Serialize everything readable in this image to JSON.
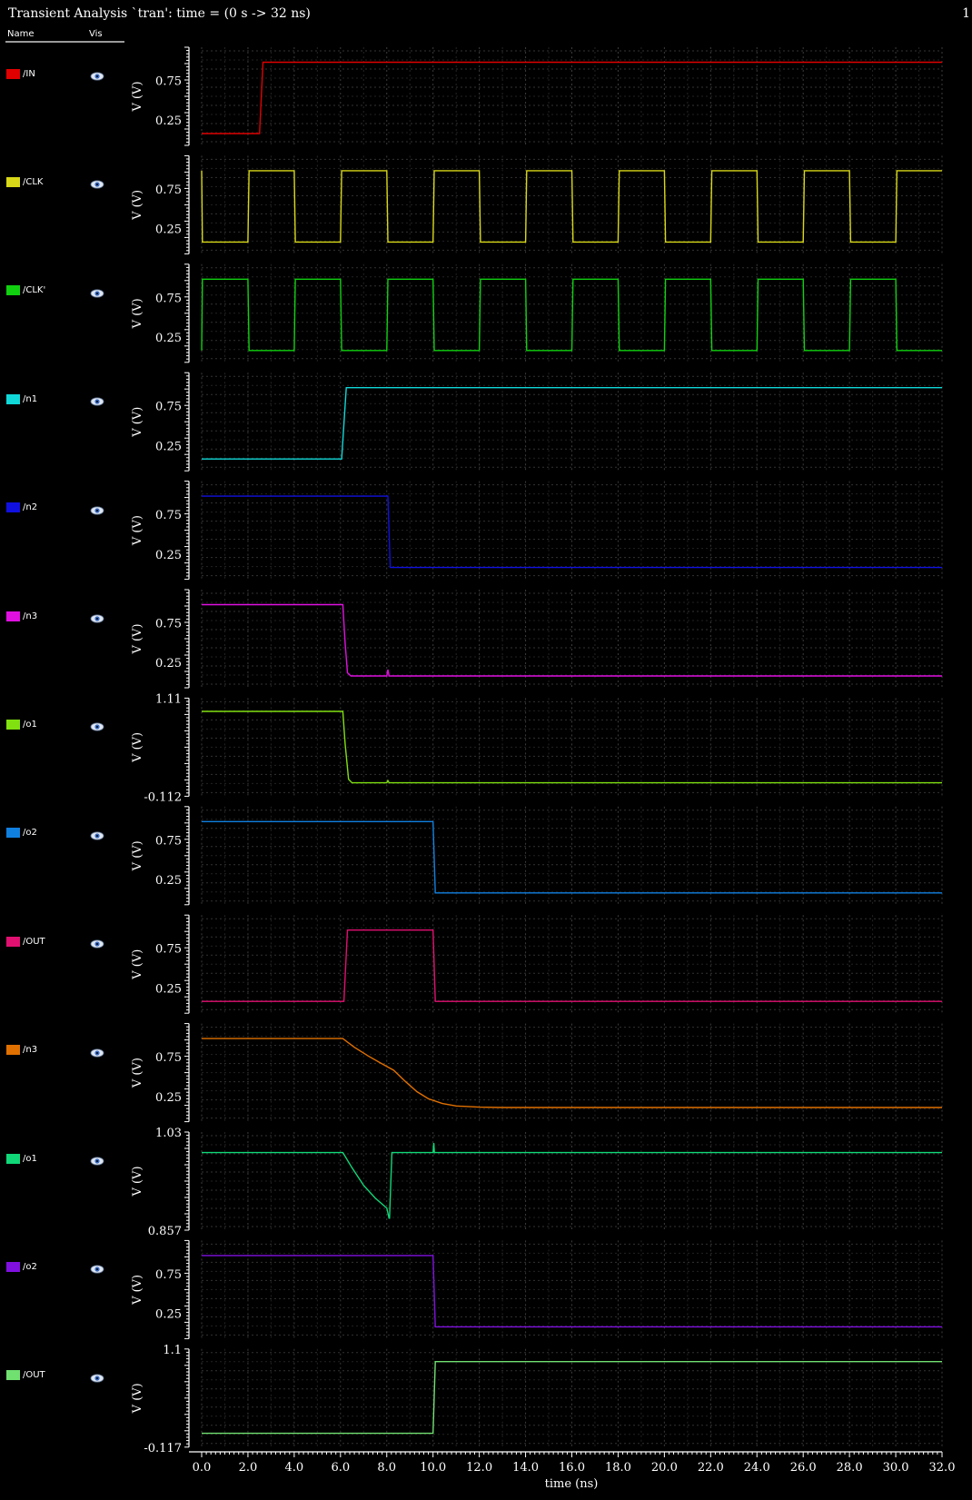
{
  "window": {
    "title": "Transient Analysis `tran': time = (0 s -> 32 ns)",
    "page_number": "1"
  },
  "legend_header": {
    "name": "Name",
    "vis": "Vis"
  },
  "chart_data": {
    "type": "line",
    "title": "Transient Analysis `tran': time = (0 s -> 32 ns)",
    "xlabel": "time (ns)",
    "xlim": [
      0,
      32
    ],
    "x_ticks": [
      "0.0",
      "2.0",
      "4.0",
      "6.0",
      "8.0",
      "10.0",
      "12.0",
      "14.0",
      "16.0",
      "18.0",
      "20.0",
      "22.0",
      "24.0",
      "26.0",
      "28.0",
      "30.0",
      "32.0"
    ],
    "grid": true,
    "series": [
      {
        "name": "/IN",
        "color": "#e00000",
        "ylabel": "V (V)",
        "ylim": [
          0,
          1.1
        ],
        "yticks": [
          "0.75",
          "0.25"
        ],
        "points": [
          [
            0,
            0.08
          ],
          [
            2.5,
            0.08
          ],
          [
            2.65,
            0.98
          ],
          [
            32,
            0.98
          ]
        ]
      },
      {
        "name": "/CLK",
        "color": "#d8d818",
        "ylabel": "V (V)",
        "ylim": [
          0,
          1.1
        ],
        "yticks": [
          "0.75",
          "0.25"
        ],
        "points": [
          [
            0,
            0.98
          ],
          [
            0.03,
            0.08
          ],
          [
            2,
            0.08
          ],
          [
            2.05,
            0.98
          ],
          [
            4,
            0.98
          ],
          [
            4.05,
            0.08
          ],
          [
            6,
            0.08
          ],
          [
            6.05,
            0.98
          ],
          [
            8,
            0.98
          ],
          [
            8.05,
            0.08
          ],
          [
            10,
            0.08
          ],
          [
            10.05,
            0.98
          ],
          [
            12,
            0.98
          ],
          [
            12.05,
            0.08
          ],
          [
            14,
            0.08
          ],
          [
            14.05,
            0.98
          ],
          [
            16,
            0.98
          ],
          [
            16.05,
            0.08
          ],
          [
            18,
            0.08
          ],
          [
            18.05,
            0.98
          ],
          [
            20,
            0.98
          ],
          [
            20.05,
            0.08
          ],
          [
            22,
            0.08
          ],
          [
            22.05,
            0.98
          ],
          [
            24,
            0.98
          ],
          [
            24.05,
            0.08
          ],
          [
            26,
            0.08
          ],
          [
            26.05,
            0.98
          ],
          [
            28,
            0.98
          ],
          [
            28.05,
            0.08
          ],
          [
            30,
            0.08
          ],
          [
            30.05,
            0.98
          ],
          [
            32,
            0.98
          ]
        ]
      },
      {
        "name": "/CLK'",
        "color": "#10d010",
        "ylabel": "V (V)",
        "ylim": [
          0,
          1.1
        ],
        "yticks": [
          "0.75",
          "0.25"
        ],
        "points": [
          [
            0,
            0.08
          ],
          [
            0.03,
            0.98
          ],
          [
            2,
            0.98
          ],
          [
            2.05,
            0.08
          ],
          [
            4,
            0.08
          ],
          [
            4.05,
            0.98
          ],
          [
            6,
            0.98
          ],
          [
            6.05,
            0.08
          ],
          [
            8,
            0.08
          ],
          [
            8.05,
            0.98
          ],
          [
            10,
            0.98
          ],
          [
            10.05,
            0.08
          ],
          [
            12,
            0.08
          ],
          [
            12.05,
            0.98
          ],
          [
            14,
            0.98
          ],
          [
            14.05,
            0.08
          ],
          [
            16,
            0.08
          ],
          [
            16.05,
            0.98
          ],
          [
            18,
            0.98
          ],
          [
            18.05,
            0.08
          ],
          [
            20,
            0.08
          ],
          [
            20.05,
            0.98
          ],
          [
            22,
            0.98
          ],
          [
            22.05,
            0.08
          ],
          [
            24,
            0.08
          ],
          [
            24.05,
            0.98
          ],
          [
            26,
            0.98
          ],
          [
            26.05,
            0.08
          ],
          [
            28,
            0.08
          ],
          [
            28.05,
            0.98
          ],
          [
            30,
            0.98
          ],
          [
            30.05,
            0.08
          ],
          [
            32,
            0.08
          ]
        ]
      },
      {
        "name": "/n1",
        "color": "#10d8d8",
        "ylabel": "V (V)",
        "ylim": [
          0,
          1.1
        ],
        "yticks": [
          "0.75",
          "0.25"
        ],
        "points": [
          [
            0,
            0.08
          ],
          [
            6.05,
            0.08
          ],
          [
            6.25,
            0.98
          ],
          [
            32,
            0.98
          ]
        ]
      },
      {
        "name": "/n2",
        "color": "#1010e0",
        "ylabel": "V (V)",
        "ylim": [
          0,
          1.1
        ],
        "yticks": [
          "0.75",
          "0.25"
        ],
        "points": [
          [
            0,
            0.98
          ],
          [
            8.05,
            0.98
          ],
          [
            8.15,
            0.08
          ],
          [
            32,
            0.08
          ]
        ]
      },
      {
        "name": "/n3",
        "color": "#e010e0",
        "ylabel": "V (V)",
        "ylim": [
          0,
          1.1
        ],
        "yticks": [
          "0.75",
          "0.25"
        ],
        "points": [
          [
            0,
            0.98
          ],
          [
            6.1,
            0.98
          ],
          [
            6.2,
            0.5
          ],
          [
            6.3,
            0.12
          ],
          [
            6.45,
            0.08
          ],
          [
            8.0,
            0.08
          ],
          [
            8.05,
            0.16
          ],
          [
            8.1,
            0.08
          ],
          [
            32,
            0.08
          ]
        ]
      },
      {
        "name": "/o1",
        "color": "#80e010",
        "ylabel": "V (V)",
        "ylim": [
          -0.112,
          1.11
        ],
        "yticks": [
          "1.11",
          "-0.112"
        ],
        "points": [
          [
            0,
            1.0
          ],
          [
            6.1,
            1.0
          ],
          [
            6.2,
            0.55
          ],
          [
            6.35,
            0.05
          ],
          [
            6.5,
            0.0
          ],
          [
            8.0,
            0.0
          ],
          [
            8.05,
            0.03
          ],
          [
            8.1,
            0.0
          ],
          [
            32,
            0.0
          ]
        ]
      },
      {
        "name": "/o2",
        "color": "#1080e0",
        "ylabel": "V (V)",
        "ylim": [
          0,
          1.1
        ],
        "yticks": [
          "0.75",
          "0.25"
        ],
        "points": [
          [
            0,
            0.98
          ],
          [
            10.0,
            0.98
          ],
          [
            10.1,
            0.08
          ],
          [
            32,
            0.08
          ]
        ]
      },
      {
        "name": "/OUT",
        "color": "#e01070",
        "ylabel": "V (V)",
        "ylim": [
          0,
          1.1
        ],
        "yticks": [
          "0.75",
          "0.25"
        ],
        "points": [
          [
            0,
            0.08
          ],
          [
            6.15,
            0.08
          ],
          [
            6.3,
            0.98
          ],
          [
            10.0,
            0.98
          ],
          [
            10.1,
            0.08
          ],
          [
            32,
            0.08
          ]
        ]
      },
      {
        "name": "/n3",
        "color": "#e07000",
        "ylabel": "V (V)",
        "ylim": [
          0,
          1.1
        ],
        "yticks": [
          "0.75",
          "0.25"
        ],
        "points": [
          [
            0,
            0.98
          ],
          [
            6.1,
            0.98
          ],
          [
            6.6,
            0.87
          ],
          [
            7.2,
            0.76
          ],
          [
            7.8,
            0.66
          ],
          [
            8.3,
            0.58
          ],
          [
            8.8,
            0.44
          ],
          [
            9.3,
            0.31
          ],
          [
            9.8,
            0.22
          ],
          [
            10.4,
            0.16
          ],
          [
            11,
            0.13
          ],
          [
            12,
            0.115
          ],
          [
            13,
            0.11
          ],
          [
            32,
            0.11
          ]
        ]
      },
      {
        "name": "/o1",
        "color": "#10d878",
        "ylabel": "V (V)",
        "ylim": [
          0.857,
          1.03
        ],
        "yticks": [
          "1.03",
          "0.857"
        ],
        "points": [
          [
            0,
            1.0
          ],
          [
            6.1,
            1.0
          ],
          [
            6.5,
            0.97
          ],
          [
            7.0,
            0.935
          ],
          [
            7.5,
            0.91
          ],
          [
            8.0,
            0.89
          ],
          [
            8.1,
            0.87
          ],
          [
            8.12,
            0.87
          ],
          [
            8.22,
            1.0
          ],
          [
            10.0,
            1.0
          ],
          [
            10.03,
            1.019
          ],
          [
            10.06,
            1.0
          ],
          [
            32,
            1.0
          ]
        ]
      },
      {
        "name": "/o2",
        "color": "#8010e0",
        "ylabel": "V (V)",
        "ylim": [
          0,
          1.1
        ],
        "yticks": [
          "0.75",
          "0.25"
        ],
        "points": [
          [
            0,
            0.98
          ],
          [
            10.0,
            0.98
          ],
          [
            10.1,
            0.08
          ],
          [
            32,
            0.08
          ]
        ]
      },
      {
        "name": "/OUT",
        "color": "#70e070",
        "ylabel": "V (V)",
        "ylim": [
          -0.117,
          1.1
        ],
        "yticks": [
          "1.1",
          "-0.117"
        ],
        "points": [
          [
            0,
            0.0
          ],
          [
            10.0,
            0.0
          ],
          [
            10.1,
            1.0
          ],
          [
            32,
            1.0
          ]
        ]
      }
    ]
  }
}
